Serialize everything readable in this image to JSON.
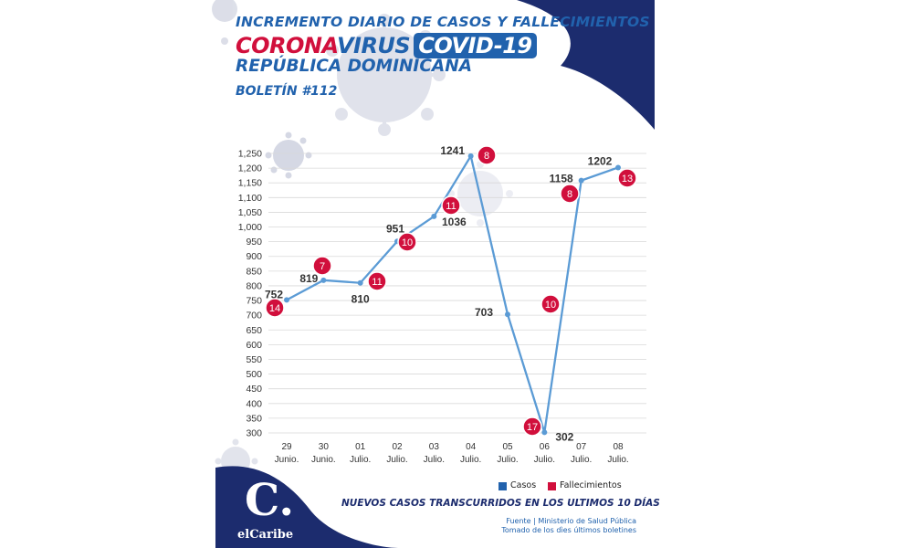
{
  "header": {
    "title": "INCREMENTO DIARIO DE CASOS Y FALLECIMIENTOS",
    "brand_part1": "CORONA",
    "brand_part2": "VIRUS",
    "brand_part3": "COVID-19",
    "country": "REPÚBLICA DOMINICANA",
    "bulletin": "BOLETÍN #112"
  },
  "footer": {
    "message": "NUEVOS CASOS TRANSCURRIDOS EN LOS ULTIMOS 10 DÍAS",
    "source_line1": "Fuente | Ministerio de Salud Pública",
    "source_line2": "Tomado de  los dìes últimos boletines",
    "logo_letter": "C.",
    "logo_name": "elCaribe"
  },
  "colors": {
    "navy": "#1c2c6e",
    "blue": "#2162ad",
    "red": "#d10f3c",
    "line": "#5b9bd5"
  },
  "chart_data": {
    "type": "line",
    "categories": [
      [
        "29",
        "Junio."
      ],
      [
        "30",
        "Junio."
      ],
      [
        "01",
        "Julio."
      ],
      [
        "02",
        "Julio."
      ],
      [
        "03",
        "Julio."
      ],
      [
        "04",
        "Julio."
      ],
      [
        "05",
        "Julio."
      ],
      [
        "06",
        "Julio."
      ],
      [
        "07",
        "Julio."
      ],
      [
        "08",
        "Julio."
      ]
    ],
    "series": [
      {
        "name": "Casos",
        "values": [
          752,
          819,
          810,
          951,
          1036,
          1241,
          703,
          302,
          1158,
          1202
        ]
      },
      {
        "name": "Fallecimientos",
        "values": [
          14,
          7,
          11,
          10,
          11,
          8,
          null,
          17,
          8,
          13
        ]
      }
    ],
    "extra_death_badge": 10,
    "ylim": [
      300,
      1250
    ],
    "yticks": [
      "300",
      "350",
      "400",
      "450",
      "500",
      "550",
      "600",
      "650",
      "700",
      "750",
      "800",
      "850",
      "900",
      "950",
      "1,000",
      "1,050",
      "1,100",
      "1,150",
      "1,200",
      "1,250"
    ],
    "grid": true,
    "legend": "bottom-right"
  }
}
